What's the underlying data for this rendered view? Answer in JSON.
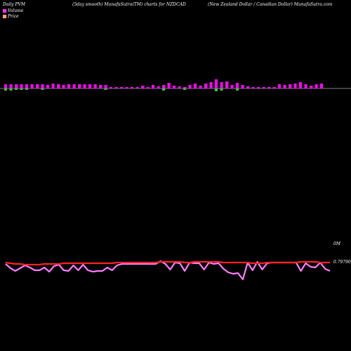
{
  "header": {
    "left": "Daily PVM",
    "center": "(5day smooth) MunafaSutra(TM) charts for NZDCAD",
    "right": "(New Zealand Dollar / Canadian Dollar) MunafaSutra.com"
  },
  "legend": [
    {
      "label": "Volume",
      "color": "#ff33ff"
    },
    {
      "label": "Price",
      "color": "#ffa07a"
    }
  ],
  "colors": {
    "volume_up": "#ff00ff",
    "volume_down": "#33cc33",
    "price_line": "#ff2020",
    "volume_line": "#ff66ff",
    "baseline": "#ffffff"
  },
  "chart_data": {
    "type": "line",
    "price_label": "0.79790",
    "volume_label": "0M",
    "volume_bars": [
      {
        "value": 6,
        "dir": "up"
      },
      {
        "value": 6,
        "dir": "up"
      },
      {
        "value": 6,
        "dir": "up"
      },
      {
        "value": 6,
        "dir": "up"
      },
      {
        "value": 6,
        "dir": "up"
      },
      {
        "value": 6,
        "dir": "up"
      },
      {
        "value": 6,
        "dir": "up"
      },
      {
        "value": 6,
        "dir": "up"
      },
      {
        "value": 5,
        "dir": "up"
      },
      {
        "value": 7,
        "dir": "up"
      },
      {
        "value": 6,
        "dir": "up"
      },
      {
        "value": 5,
        "dir": "up"
      },
      {
        "value": 6,
        "dir": "up"
      },
      {
        "value": 6,
        "dir": "up"
      },
      {
        "value": 6,
        "dir": "up"
      },
      {
        "value": 6,
        "dir": "up"
      },
      {
        "value": 6,
        "dir": "up"
      },
      {
        "value": 6,
        "dir": "up"
      },
      {
        "value": 5,
        "dir": "up"
      },
      {
        "value": 5,
        "dir": "up"
      },
      {
        "value": 2,
        "dir": "up"
      },
      {
        "value": 2,
        "dir": "up"
      },
      {
        "value": 2,
        "dir": "up"
      },
      {
        "value": 2,
        "dir": "up"
      },
      {
        "value": 2,
        "dir": "up"
      },
      {
        "value": 2,
        "dir": "up"
      },
      {
        "value": 4,
        "dir": "up"
      },
      {
        "value": 2,
        "dir": "up"
      },
      {
        "value": 5,
        "dir": "up"
      },
      {
        "value": 3,
        "dir": "up"
      },
      {
        "value": 5,
        "dir": "up"
      },
      {
        "value": 8,
        "dir": "up"
      },
      {
        "value": 4,
        "dir": "up"
      },
      {
        "value": 3,
        "dir": "up"
      },
      {
        "value": 2,
        "dir": "up"
      },
      {
        "value": 5,
        "dir": "up"
      },
      {
        "value": 7,
        "dir": "up"
      },
      {
        "value": 4,
        "dir": "up"
      },
      {
        "value": 7,
        "dir": "up"
      },
      {
        "value": 9,
        "dir": "up"
      },
      {
        "value": 13,
        "dir": "up"
      },
      {
        "value": 9,
        "dir": "up"
      },
      {
        "value": 10,
        "dir": "up"
      },
      {
        "value": 5,
        "dir": "up"
      },
      {
        "value": 8,
        "dir": "up"
      },
      {
        "value": 5,
        "dir": "up"
      },
      {
        "value": 3,
        "dir": "up"
      },
      {
        "value": 2,
        "dir": "up"
      },
      {
        "value": 2,
        "dir": "up"
      },
      {
        "value": 2,
        "dir": "up"
      },
      {
        "value": 2,
        "dir": "up"
      },
      {
        "value": 2,
        "dir": "up"
      },
      {
        "value": 6,
        "dir": "up"
      },
      {
        "value": 5,
        "dir": "up"
      },
      {
        "value": 6,
        "dir": "up"
      },
      {
        "value": 7,
        "dir": "up"
      },
      {
        "value": 9,
        "dir": "up"
      },
      {
        "value": 6,
        "dir": "up"
      },
      {
        "value": 4,
        "dir": "up"
      },
      {
        "value": 6,
        "dir": "up"
      },
      {
        "value": 7,
        "dir": "up"
      }
    ],
    "volume_bars_down": [
      {
        "index": 0,
        "value": 3
      },
      {
        "index": 1,
        "value": 3
      },
      {
        "index": 2,
        "value": 2
      },
      {
        "index": 3,
        "value": 2
      },
      {
        "index": 4,
        "value": 2
      },
      {
        "index": 7,
        "value": 2
      },
      {
        "index": 19,
        "value": 2
      },
      {
        "index": 30,
        "value": 3
      },
      {
        "index": 34,
        "value": 2
      },
      {
        "index": 40,
        "value": 4
      },
      {
        "index": 41,
        "value": 3
      },
      {
        "index": 44,
        "value": 3
      }
    ],
    "volume_series": [
      46,
      52,
      56,
      52,
      48,
      51,
      55,
      55,
      51,
      57,
      49,
      47,
      55,
      56,
      48,
      55,
      47,
      55,
      57,
      56,
      56,
      51,
      55,
      48,
      46,
      46,
      46,
      46,
      46,
      46,
      46,
      46,
      42,
      46,
      54,
      44,
      45,
      56,
      44,
      45,
      45,
      54,
      44,
      46,
      45,
      53,
      58,
      60,
      59,
      68,
      44,
      55,
      43,
      54,
      45,
      44,
      44,
      44,
      44,
      44,
      44,
      56,
      45,
      50,
      51,
      44,
      53,
      56
    ],
    "price_series": [
      44,
      45,
      46,
      46,
      47,
      47,
      47,
      47,
      46,
      46,
      46,
      46,
      45,
      45,
      45,
      45,
      45,
      45,
      45,
      45,
      45,
      45,
      45,
      44,
      44,
      44,
      44,
      44,
      44,
      44,
      44,
      44,
      43,
      43,
      43,
      43,
      43,
      44,
      44,
      43,
      43,
      43,
      43,
      43,
      43,
      44,
      44,
      44,
      44,
      44,
      44,
      45,
      45,
      45,
      44,
      44,
      44,
      44,
      44,
      44,
      44,
      43,
      43,
      43,
      43,
      44,
      44,
      44
    ]
  }
}
